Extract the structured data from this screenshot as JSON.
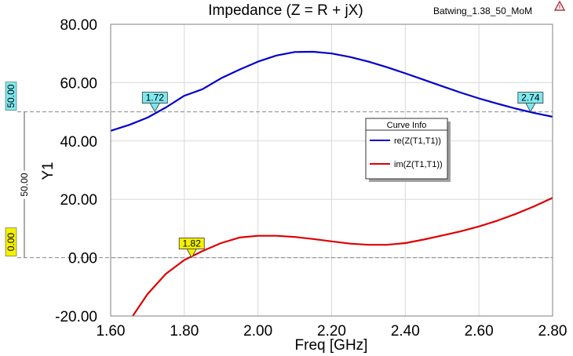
{
  "chart_data": {
    "type": "line",
    "title": "Impedance (Z = R + jX)",
    "design_name": "Batwing_1.38_50_MoM",
    "xlabel": "Freq [GHz]",
    "ylabel": "Y1",
    "xlim": [
      1.6,
      2.8
    ],
    "ylim": [
      -20,
      80
    ],
    "x_ticks": [
      "1.60",
      "1.80",
      "2.00",
      "2.20",
      "2.40",
      "2.60",
      "2.80"
    ],
    "y_ticks": [
      "-20.00",
      "0.00",
      "20.00",
      "40.00",
      "60.00",
      "80.00"
    ],
    "grid": true,
    "legend_title": "Curve Info",
    "legend_position": "center-right",
    "series": [
      {
        "name": "re(Z(T1,T1))",
        "color": "#0000cc",
        "x": [
          1.6,
          1.65,
          1.7,
          1.75,
          1.8,
          1.85,
          1.9,
          1.95,
          2.0,
          2.05,
          2.1,
          2.15,
          2.2,
          2.25,
          2.3,
          2.35,
          2.4,
          2.45,
          2.5,
          2.55,
          2.6,
          2.65,
          2.7,
          2.75,
          2.8
        ],
        "y": [
          43.5,
          45.5,
          48.0,
          51.5,
          55.5,
          57.8,
          61.5,
          64.5,
          67.2,
          69.3,
          70.5,
          70.6,
          70.0,
          68.8,
          67.2,
          65.3,
          63.2,
          61.0,
          58.8,
          56.6,
          54.6,
          52.8,
          51.1,
          49.6,
          48.3
        ]
      },
      {
        "name": "im(Z(T1,T1))",
        "color": "#dd0000",
        "x": [
          1.66,
          1.7,
          1.75,
          1.8,
          1.85,
          1.9,
          1.95,
          2.0,
          2.05,
          2.1,
          2.15,
          2.2,
          2.25,
          2.3,
          2.35,
          2.4,
          2.45,
          2.5,
          2.55,
          2.6,
          2.65,
          2.7,
          2.75,
          2.8
        ],
        "y": [
          -20.0,
          -12.5,
          -5.5,
          -0.8,
          2.3,
          5.0,
          6.9,
          7.5,
          7.5,
          7.1,
          6.4,
          5.6,
          4.8,
          4.4,
          4.4,
          5.0,
          6.2,
          7.6,
          9.0,
          10.7,
          12.7,
          15.0,
          17.6,
          20.5
        ]
      }
    ],
    "markers": [
      {
        "label": "1.72",
        "x": 1.72,
        "y": 50.0,
        "series": 0,
        "bg": "#7fe8ef"
      },
      {
        "label": "2.74",
        "x": 2.74,
        "y": 50.0,
        "series": 0,
        "bg": "#7fe8ef"
      },
      {
        "label": "1.82",
        "x": 1.82,
        "y": 0.0,
        "series": 1,
        "bg": "#f4f000"
      }
    ],
    "reference_lines": [
      {
        "y": 50.0,
        "label": "50.00",
        "mid_label": "50.00",
        "bg": "#7fe8ef"
      },
      {
        "y": 0.0,
        "label": "0.00",
        "bg": "#f4f000"
      }
    ]
  }
}
